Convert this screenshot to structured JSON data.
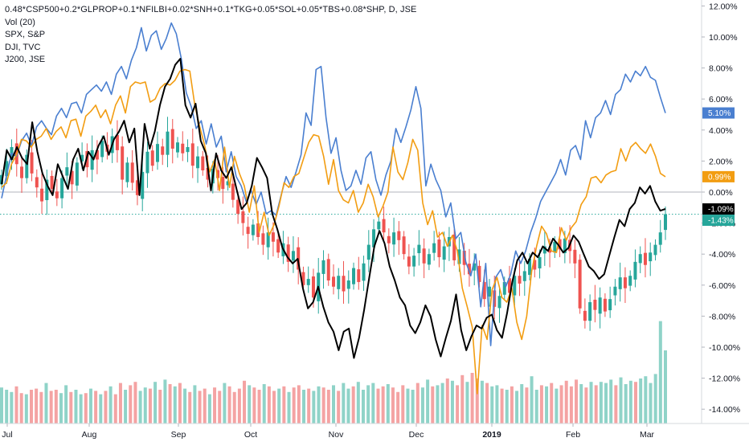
{
  "legend": {
    "main": "0.48*CSP500+0.2*GLPROP+0.1*NFILBI+0.02*SNH+0.1*TKG+0.05*SOL+0.05*TBS+0.08*SHP, D, JSE",
    "items": [
      "Vol (20)",
      "SPX, S&P",
      "DJI, TVC",
      "J200, JSE"
    ]
  },
  "colors": {
    "spx": "#4a7fd0",
    "dji": "#f29d12",
    "j200": "#000000",
    "candle_up": "#26a69a",
    "candle_down": "#ef5350",
    "vol_up": "#8fd3c8",
    "vol_down": "#f4a3a3",
    "zero_line": "#b2b5be",
    "current_line": "#26a69a",
    "axis_text": "#131722"
  },
  "chart_data": {
    "type": "line",
    "x_labels": [
      "Jul",
      "Aug",
      "Sep",
      "Oct",
      "Nov",
      "Dec",
      "2019",
      "Feb",
      "Mar"
    ],
    "y_ticks": [
      "12.00%",
      "10.00%",
      "8.00%",
      "6.00%",
      "4.00%",
      "2.00%",
      "0.00%",
      "-2.00%",
      "-4.00%",
      "-6.00%",
      "-8.00%",
      "-10.00%",
      "-12.00%",
      "-14.00%"
    ],
    "ylim": [
      -14.0,
      12.0
    ],
    "series": [
      {
        "name": "SPX, S&P",
        "key": "spx",
        "last_label": "5.10%",
        "values": [
          -0.4,
          1.1,
          2.5,
          2.3,
          3.3,
          3.8,
          3.0,
          4.2,
          4.6,
          4.1,
          3.7,
          4.9,
          5.4,
          4.8,
          5.7,
          5.8,
          5.1,
          6.3,
          6.6,
          6.9,
          6.5,
          7.1,
          6.3,
          7.6,
          8.1,
          7.3,
          8.5,
          9.3,
          10.6,
          9.1,
          10.1,
          10.4,
          9.2,
          9.9,
          10.9,
          10.2,
          8.6,
          6.4,
          5.5,
          4.1,
          4.6,
          3.1,
          4.4,
          2.9,
          3.6,
          1.3,
          2.6,
          1.0,
          0.4,
          -0.6,
          0.1,
          -0.8,
          0.0,
          -1.4,
          -1.2,
          -1.5,
          -0.2,
          1.0,
          0.3,
          1.3,
          2.4,
          5.1,
          4.3,
          7.9,
          8.1,
          4.8,
          2.5,
          3.5,
          1.4,
          0.1,
          0.4,
          1.4,
          0.5,
          2.2,
          2.6,
          0.8,
          -0.2,
          1.1,
          2.0,
          4.1,
          3.2,
          4.2,
          5.3,
          6.8,
          5.4,
          0.4,
          1.8,
          0.8,
          0.1,
          -1.6,
          -0.7,
          -3.0,
          -2.6,
          -4.5,
          -5.4,
          -4.0,
          -7.4,
          -4.6,
          -9.9,
          -5.5,
          -5.0,
          -6.1,
          -5.3,
          -3.8,
          -4.6,
          -3.8,
          -2.6,
          -1.7,
          -0.6,
          0.0,
          0.6,
          1.2,
          2.1,
          1.1,
          2.7,
          3.0,
          2.1,
          4.6,
          3.5,
          4.8,
          5.1,
          5.9,
          5.0,
          6.3,
          6.6,
          7.6,
          7.1,
          7.8,
          7.5,
          8.1,
          7.4,
          7.2,
          6.1,
          5.1
        ]
      },
      {
        "name": "DJI, TVC",
        "key": "dji",
        "last_label": "0.99%",
        "values": [
          0.3,
          0.6,
          1.8,
          2.4,
          3.4,
          3.3,
          2.9,
          3.4,
          3.6,
          4.1,
          3.4,
          3.9,
          4.2,
          3.5,
          4.6,
          4.7,
          3.6,
          4.9,
          5.2,
          5.6,
          4.8,
          5.3,
          4.4,
          5.6,
          6.2,
          5.1,
          6.8,
          7.1,
          7.0,
          7.1,
          5.8,
          6.0,
          6.7,
          7.0,
          6.9,
          7.2,
          7.8,
          7.9,
          7.8,
          5.6,
          4.2,
          3.0,
          1.3,
          2.1,
          0.1,
          2.9,
          0.3,
          2.3,
          1.2,
          0.4,
          -1.3,
          0.4,
          -2.6,
          -1.3,
          -2.8,
          -2.1,
          -0.9,
          0.6,
          0.3,
          1.0,
          1.2,
          2.2,
          3.2,
          3.7,
          3.6,
          2.3,
          0.5,
          2.1,
          0.1,
          -0.5,
          -0.7,
          0.1,
          -1.3,
          -0.7,
          0.5,
          -0.3,
          -1.6,
          -0.9,
          0.0,
          2.9,
          1.3,
          0.8,
          1.9,
          3.4,
          2.7,
          -0.7,
          -2.1,
          -1.2,
          -2.9,
          -2.6,
          -3.5,
          -2.8,
          -3.8,
          -6.2,
          -7.4,
          -8.7,
          -13.0,
          -8.6,
          -9.5,
          -6.3,
          -5.5,
          -6.8,
          -7.1,
          -6.2,
          -8.4,
          -9.5,
          -8.0,
          -5.1,
          -3.5,
          -2.2,
          -2.7,
          -3.8,
          -3.9,
          -2.3,
          -3.1,
          -2.3,
          -1.9,
          -0.8,
          -0.3,
          0.9,
          1.0,
          0.6,
          1.1,
          1.3,
          1.4,
          2.8,
          2.0,
          2.9,
          3.2,
          2.8,
          2.5,
          3.1,
          2.3,
          1.2,
          0.99
        ]
      },
      {
        "name": "J200, JSE",
        "key": "j200",
        "last_label": "-1.09%",
        "values": [
          0.5,
          2.7,
          2.1,
          2.9,
          2.2,
          1.8,
          4.5,
          2.6,
          1.2,
          0.4,
          -0.2,
          1.8,
          1.0,
          0.2,
          2.1,
          2.8,
          1.4,
          2.6,
          2.1,
          3.0,
          3.6,
          2.4,
          3.4,
          3.9,
          4.6,
          3.2,
          4.1,
          -0.2,
          4.4,
          2.8,
          3.9,
          5.6,
          6.8,
          7.3,
          8.2,
          8.6,
          5.6,
          4.8,
          5.7,
          3.3,
          2.5,
          0.1,
          2.5,
          1.4,
          0.9,
          1.6,
          0.2,
          -1.1,
          -0.7,
          0.4,
          2.2,
          1.6,
          0.9,
          -1.4,
          -2.4,
          -3.6,
          -4.2,
          -4.6,
          -4.3,
          -6.2,
          -7.5,
          -7.1,
          -6.1,
          -7.4,
          -8.4,
          -9.0,
          -10.2,
          -9.0,
          -8.8,
          -10.7,
          -9.4,
          -7.6,
          -5.5,
          -3.5,
          -2.5,
          -3.3,
          -4.8,
          -5.7,
          -6.8,
          -7.3,
          -8.6,
          -9.1,
          -8.4,
          -7.3,
          -8.0,
          -9.5,
          -10.6,
          -9.4,
          -8.3,
          -6.6,
          -8.9,
          -10.2,
          -9.3,
          -8.6,
          -8.8,
          -8.1,
          -7.9,
          -8.9,
          -9.4,
          -7.8,
          -5.8,
          -4.4,
          -3.9,
          -4.6,
          -3.9,
          -4.2,
          -3.5,
          -3.8,
          -3.0,
          -3.4,
          -3.9,
          -3.6,
          -2.8,
          -3.2,
          -4.0,
          -4.8,
          -5.1,
          -5.6,
          -5.3,
          -4.1,
          -2.9,
          -1.8,
          -2.2,
          -1.1,
          -0.7,
          0.3,
          -0.1,
          0.4,
          -0.6,
          -1.2,
          -1.09
        ]
      }
    ],
    "candles": {
      "name": "0.48*CSP500+0.2*GLPROP+0.1*NFILBI+0.02*SNH+0.1*TKG+0.05*SOL+0.05*TBS+0.08*SHP",
      "last_label": "-1.43%",
      "closes": [
        1.1,
        2.0,
        2.9,
        1.8,
        0.9,
        2.4,
        1.2,
        0.3,
        -0.6,
        0.8,
        0.2,
        -0.4,
        0.9,
        1.6,
        0.5,
        1.9,
        2.4,
        1.6,
        2.7,
        2.1,
        3.3,
        2.6,
        3.6,
        2.7,
        0.8,
        1.9,
        0.6,
        -0.2,
        1.3,
        2.6,
        1.7,
        3.1,
        2.4,
        3.9,
        2.8,
        3.2,
        2.5,
        2.9,
        1.7,
        2.3,
        1.4,
        0.8,
        1.5,
        0.9,
        0.2,
        0.7,
        -0.5,
        -1.4,
        -2.0,
        -2.7,
        -2.1,
        -2.9,
        -3.4,
        -2.6,
        -3.2,
        -3.9,
        -3.3,
        -4.5,
        -3.8,
        -5.0,
        -6.0,
        -5.6,
        -6.8,
        -5.2,
        -4.4,
        -5.7,
        -6.1,
        -5.4,
        -6.4,
        -5.7,
        -4.9,
        -5.8,
        -4.6,
        -3.4,
        -2.4,
        -1.9,
        -2.6,
        -3.3,
        -2.6,
        -3.1,
        -4.0,
        -4.8,
        -4.1,
        -3.4,
        -4.6,
        -4.0,
        -3.3,
        -4.2,
        -3.5,
        -2.9,
        -4.4,
        -3.7,
        -4.7,
        -5.3,
        -4.6,
        -5.8,
        -6.9,
        -6.1,
        -7.4,
        -6.7,
        -5.8,
        -6.5,
        -5.4,
        -5.9,
        -5.1,
        -4.3,
        -5.0,
        -4.2,
        -3.5,
        -3.9,
        -3.2,
        -3.7,
        -3.0,
        -3.8,
        -4.6,
        -7.5,
        -8.3,
        -7.1,
        -7.6,
        -6.8,
        -7.7,
        -6.9,
        -6.1,
        -5.5,
        -6.2,
        -5.4,
        -4.5,
        -4.0,
        -4.7,
        -3.9,
        -3.4,
        -2.6,
        -1.43
      ]
    },
    "volume": {
      "name": "Vol (20)",
      "values": [
        0.32,
        0.3,
        0.28,
        0.33,
        0.27,
        0.26,
        0.3,
        0.31,
        0.28,
        0.36,
        0.29,
        0.3,
        0.27,
        0.34,
        0.28,
        0.3,
        0.26,
        0.27,
        0.31,
        0.29,
        0.26,
        0.29,
        0.33,
        0.26,
        0.36,
        0.3,
        0.34,
        0.37,
        0.29,
        0.32,
        0.31,
        0.37,
        0.3,
        0.39,
        0.35,
        0.33,
        0.36,
        0.31,
        0.28,
        0.34,
        0.29,
        0.31,
        0.26,
        0.32,
        0.29,
        0.36,
        0.33,
        0.28,
        0.31,
        0.38,
        0.34,
        0.32,
        0.3,
        0.35,
        0.33,
        0.29,
        0.31,
        0.33,
        0.28,
        0.32,
        0.34,
        0.3,
        0.31,
        0.29,
        0.33,
        0.32,
        0.3,
        0.34,
        0.29,
        0.36,
        0.31,
        0.33,
        0.37,
        0.3,
        0.34,
        0.36,
        0.31,
        0.33,
        0.35,
        0.32,
        0.28,
        0.34,
        0.31,
        0.3,
        0.36,
        0.32,
        0.39,
        0.33,
        0.34,
        0.36,
        0.4,
        0.38,
        0.34,
        0.43,
        0.37,
        0.45,
        0.4,
        0.38,
        0.36,
        0.33,
        0.34,
        0.31,
        0.3,
        0.33,
        0.29,
        0.35,
        0.32,
        0.42,
        0.3,
        0.34,
        0.33,
        0.36,
        0.31,
        0.34,
        0.38,
        0.33,
        0.39,
        0.35,
        0.32,
        0.37,
        0.34,
        0.37,
        0.36,
        0.39,
        0.34,
        0.41,
        0.35,
        0.38,
        0.37,
        0.4,
        0.42,
        0.36,
        0.44,
        0.91,
        0.65
      ],
      "max": 1.0
    }
  }
}
